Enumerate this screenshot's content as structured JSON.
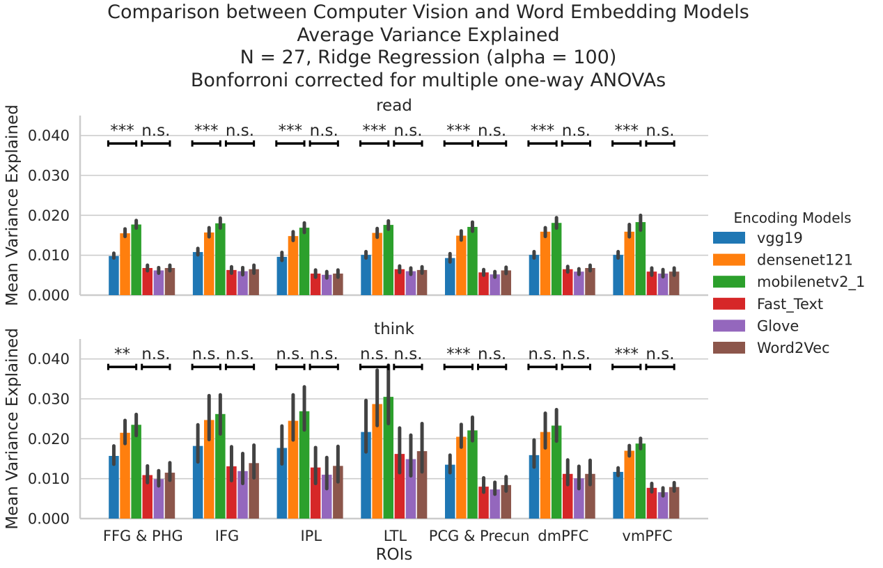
{
  "title": {
    "lines": [
      "Comparison between Computer Vision and Word Embedding Models",
      "Average Variance Explained",
      "N = 27, Ridge Regression (alpha = 100)",
      "Bonforroni corrected for multiple one-way ANOVAs"
    ]
  },
  "chart_data": {
    "type": "bar",
    "title": "Comparison between Computer Vision and Word Embedding Models Average Variance Explained N = 27, Ridge Regression (alpha = 100) Bonforroni corrected for multiple one-way ANOVAs",
    "xlabel": "ROIs",
    "ylabel": "Mean Variance Explained",
    "ylim": [
      0,
      0.045
    ],
    "yticks": [
      "0.000",
      "0.010",
      "0.020",
      "0.030",
      "0.040"
    ],
    "grid": "horizontal",
    "legend_title": "Encoding Models",
    "legend_position": "right",
    "categories": [
      "FFG & PHG",
      "IFG",
      "IPL",
      "LTL",
      "PCG & Precun",
      "dmPFC",
      "vmPFC"
    ],
    "series_names": [
      "vgg19",
      "densenet121",
      "mobilenetv2_1",
      "Fast_Text",
      "Glove",
      "Word2Vec"
    ],
    "colors": [
      "#1f77b4",
      "#ff7f0e",
      "#2ca02c",
      "#d62728",
      "#9467bd",
      "#8c564b"
    ],
    "significance_bracket_y": 0.038,
    "panels": [
      {
        "name": "read",
        "values": [
          [
            0.0098,
            0.0155,
            0.0177,
            0.0068,
            0.0062,
            0.0068
          ],
          [
            0.0108,
            0.0157,
            0.018,
            0.0063,
            0.006,
            0.0065
          ],
          [
            0.0096,
            0.0148,
            0.0169,
            0.0054,
            0.0051,
            0.0054
          ],
          [
            0.0101,
            0.0156,
            0.0176,
            0.0065,
            0.006,
            0.0063
          ],
          [
            0.0093,
            0.0149,
            0.0171,
            0.0057,
            0.0052,
            0.0062
          ],
          [
            0.0101,
            0.0159,
            0.0181,
            0.0065,
            0.0059,
            0.0068
          ],
          [
            0.0101,
            0.0159,
            0.0183,
            0.0059,
            0.0054,
            0.0059
          ]
        ],
        "errors": [
          [
            [
              0.0093,
              0.0105
            ],
            [
              0.0147,
              0.0166
            ],
            [
              0.0168,
              0.0187
            ],
            [
              0.0061,
              0.0075
            ],
            [
              0.0055,
              0.0069
            ],
            [
              0.0061,
              0.0075
            ]
          ],
          [
            [
              0.0101,
              0.0117
            ],
            [
              0.0146,
              0.0169
            ],
            [
              0.0168,
              0.0193
            ],
            [
              0.0055,
              0.0071
            ],
            [
              0.0051,
              0.0069
            ],
            [
              0.0055,
              0.0075
            ]
          ],
          [
            [
              0.0087,
              0.0107
            ],
            [
              0.0137,
              0.0159
            ],
            [
              0.0157,
              0.0181
            ],
            [
              0.0045,
              0.0063
            ],
            [
              0.0043,
              0.0059
            ],
            [
              0.0045,
              0.0063
            ]
          ],
          [
            [
              0.0093,
              0.0109
            ],
            [
              0.0145,
              0.0167
            ],
            [
              0.0165,
              0.0186
            ],
            [
              0.0057,
              0.0073
            ],
            [
              0.0052,
              0.0068
            ],
            [
              0.0055,
              0.0071
            ]
          ],
          [
            [
              0.0083,
              0.0104
            ],
            [
              0.0138,
              0.0161
            ],
            [
              0.016,
              0.0183
            ],
            [
              0.005,
              0.0064
            ],
            [
              0.0045,
              0.0059
            ],
            [
              0.0054,
              0.007
            ]
          ],
          [
            [
              0.0093,
              0.0109
            ],
            [
              0.0147,
              0.0169
            ],
            [
              0.0168,
              0.0194
            ],
            [
              0.0058,
              0.0072
            ],
            [
              0.0052,
              0.0066
            ],
            [
              0.0061,
              0.0075
            ]
          ],
          [
            [
              0.0093,
              0.0109
            ],
            [
              0.0146,
              0.0177
            ],
            [
              0.0163,
              0.02
            ],
            [
              0.005,
              0.0068
            ],
            [
              0.0046,
              0.0064
            ],
            [
              0.005,
              0.0068
            ]
          ]
        ],
        "significance": [
          [
            "***",
            "n.s."
          ],
          [
            "***",
            "n.s."
          ],
          [
            "***",
            "n.s."
          ],
          [
            "***",
            "n.s."
          ],
          [
            "***",
            "n.s."
          ],
          [
            "***",
            "n.s."
          ],
          [
            "***",
            "n.s."
          ]
        ]
      },
      {
        "name": "think",
        "values": [
          [
            0.0157,
            0.0215,
            0.0235,
            0.0109,
            0.0099,
            0.0115
          ],
          [
            0.0182,
            0.0247,
            0.0262,
            0.0131,
            0.0119,
            0.0139
          ],
          [
            0.0177,
            0.0245,
            0.0269,
            0.0128,
            0.011,
            0.0132
          ],
          [
            0.0217,
            0.0287,
            0.0305,
            0.0162,
            0.0149,
            0.0169
          ],
          [
            0.0135,
            0.0205,
            0.0221,
            0.008,
            0.0073,
            0.0084
          ],
          [
            0.0159,
            0.0217,
            0.0233,
            0.0112,
            0.0101,
            0.0112
          ],
          [
            0.0117,
            0.017,
            0.0188,
            0.0077,
            0.0066,
            0.0079
          ]
        ],
        "errors": [
          [
            [
              0.0136,
              0.0182
            ],
            [
              0.0188,
              0.0246
            ],
            [
              0.0208,
              0.0261
            ],
            [
              0.009,
              0.0132
            ],
            [
              0.0082,
              0.012
            ],
            [
              0.0096,
              0.014
            ]
          ],
          [
            [
              0.0142,
              0.0235
            ],
            [
              0.0198,
              0.0308
            ],
            [
              0.0212,
              0.031
            ],
            [
              0.0095,
              0.018
            ],
            [
              0.0088,
              0.0163
            ],
            [
              0.0102,
              0.0184
            ]
          ],
          [
            [
              0.0137,
              0.0232
            ],
            [
              0.0197,
              0.031
            ],
            [
              0.0222,
              0.033
            ],
            [
              0.0088,
              0.0178
            ],
            [
              0.0075,
              0.0153
            ],
            [
              0.0092,
              0.0181
            ]
          ],
          [
            [
              0.0167,
              0.0296
            ],
            [
              0.0233,
              0.0372
            ],
            [
              0.0238,
              0.0384
            ],
            [
              0.0115,
              0.0227
            ],
            [
              0.0107,
              0.0209
            ],
            [
              0.0117,
              0.0238
            ]
          ],
          [
            [
              0.0115,
              0.0159
            ],
            [
              0.0179,
              0.0236
            ],
            [
              0.0195,
              0.0254
            ],
            [
              0.0066,
              0.0102
            ],
            [
              0.0061,
              0.0091
            ],
            [
              0.0069,
              0.0105
            ]
          ],
          [
            [
              0.0129,
              0.0197
            ],
            [
              0.0177,
              0.0264
            ],
            [
              0.0194,
              0.0273
            ],
            [
              0.0085,
              0.0147
            ],
            [
              0.0075,
              0.0131
            ],
            [
              0.0085,
              0.0146
            ]
          ],
          [
            [
              0.0108,
              0.0127
            ],
            [
              0.0157,
              0.0183
            ],
            [
              0.0175,
              0.0201
            ],
            [
              0.0067,
              0.0088
            ],
            [
              0.0057,
              0.0077
            ],
            [
              0.0069,
              0.009
            ]
          ]
        ],
        "significance": [
          [
            "**",
            "n.s."
          ],
          [
            "n.s.",
            "n.s."
          ],
          [
            "n.s.",
            "n.s."
          ],
          [
            "n.s.",
            "n.s."
          ],
          [
            "***",
            "n.s."
          ],
          [
            "n.s.",
            "n.s."
          ],
          [
            "***",
            "n.s."
          ]
        ]
      }
    ]
  }
}
